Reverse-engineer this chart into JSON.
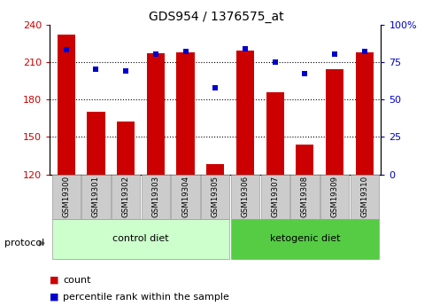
{
  "title": "GDS954 / 1376575_at",
  "samples": [
    "GSM19300",
    "GSM19301",
    "GSM19302",
    "GSM19303",
    "GSM19304",
    "GSM19305",
    "GSM19306",
    "GSM19307",
    "GSM19308",
    "GSM19309",
    "GSM19310"
  ],
  "counts": [
    232,
    170,
    162,
    217,
    218,
    128,
    219,
    186,
    144,
    204,
    218
  ],
  "percentiles": [
    83,
    70,
    69,
    80,
    82,
    58,
    84,
    75,
    67,
    80,
    82
  ],
  "ylim_left": [
    120,
    240
  ],
  "ylim_right": [
    0,
    100
  ],
  "yticks_left": [
    120,
    150,
    180,
    210,
    240
  ],
  "yticks_right": [
    0,
    25,
    50,
    75,
    100
  ],
  "bar_color": "#cc0000",
  "scatter_color": "#0000cc",
  "bg_color": "#ffffff",
  "protocol_label": "protocol",
  "group1_label": "control diet",
  "group2_label": "ketogenic diet",
  "group1_indices": [
    0,
    1,
    2,
    3,
    4,
    5
  ],
  "group2_indices": [
    6,
    7,
    8,
    9,
    10
  ],
  "group1_color": "#ccffcc",
  "group2_color": "#55cc44",
  "tick_bg_color": "#cccccc",
  "legend_count_label": "count",
  "legend_pct_label": "percentile rank within the sample",
  "title_fontsize": 10,
  "tick_fontsize": 8,
  "label_fontsize": 8
}
